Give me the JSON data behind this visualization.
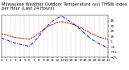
{
  "title": "Milwaukee Weather Outdoor Temperature (vs) THSW Index per Hour (Last 24 Hours)",
  "hours": [
    0,
    1,
    2,
    3,
    4,
    5,
    6,
    7,
    8,
    9,
    10,
    11,
    12,
    13,
    14,
    15,
    16,
    17,
    18,
    19,
    20,
    21,
    22,
    23
  ],
  "temp": [
    20,
    18,
    15,
    13,
    12,
    11,
    10,
    14,
    20,
    28,
    34,
    38,
    42,
    43,
    41,
    39,
    36,
    32,
    27,
    22,
    18,
    14,
    11,
    9
  ],
  "thsw": [
    12,
    9,
    5,
    2,
    0,
    -2,
    -4,
    4,
    14,
    26,
    36,
    44,
    50,
    54,
    48,
    42,
    36,
    28,
    20,
    12,
    6,
    1,
    -3,
    -8
  ],
  "temp_color": "#cc0000",
  "thsw_color": "#0000cc",
  "ylim": [
    -25,
    55
  ],
  "yticks": [
    45,
    35,
    25,
    15,
    5,
    -5,
    -15,
    -25
  ],
  "bg_color": "#ffffff",
  "grid_color": "#888888",
  "title_fontsize": 3.8,
  "tick_fontsize": 3.0
}
